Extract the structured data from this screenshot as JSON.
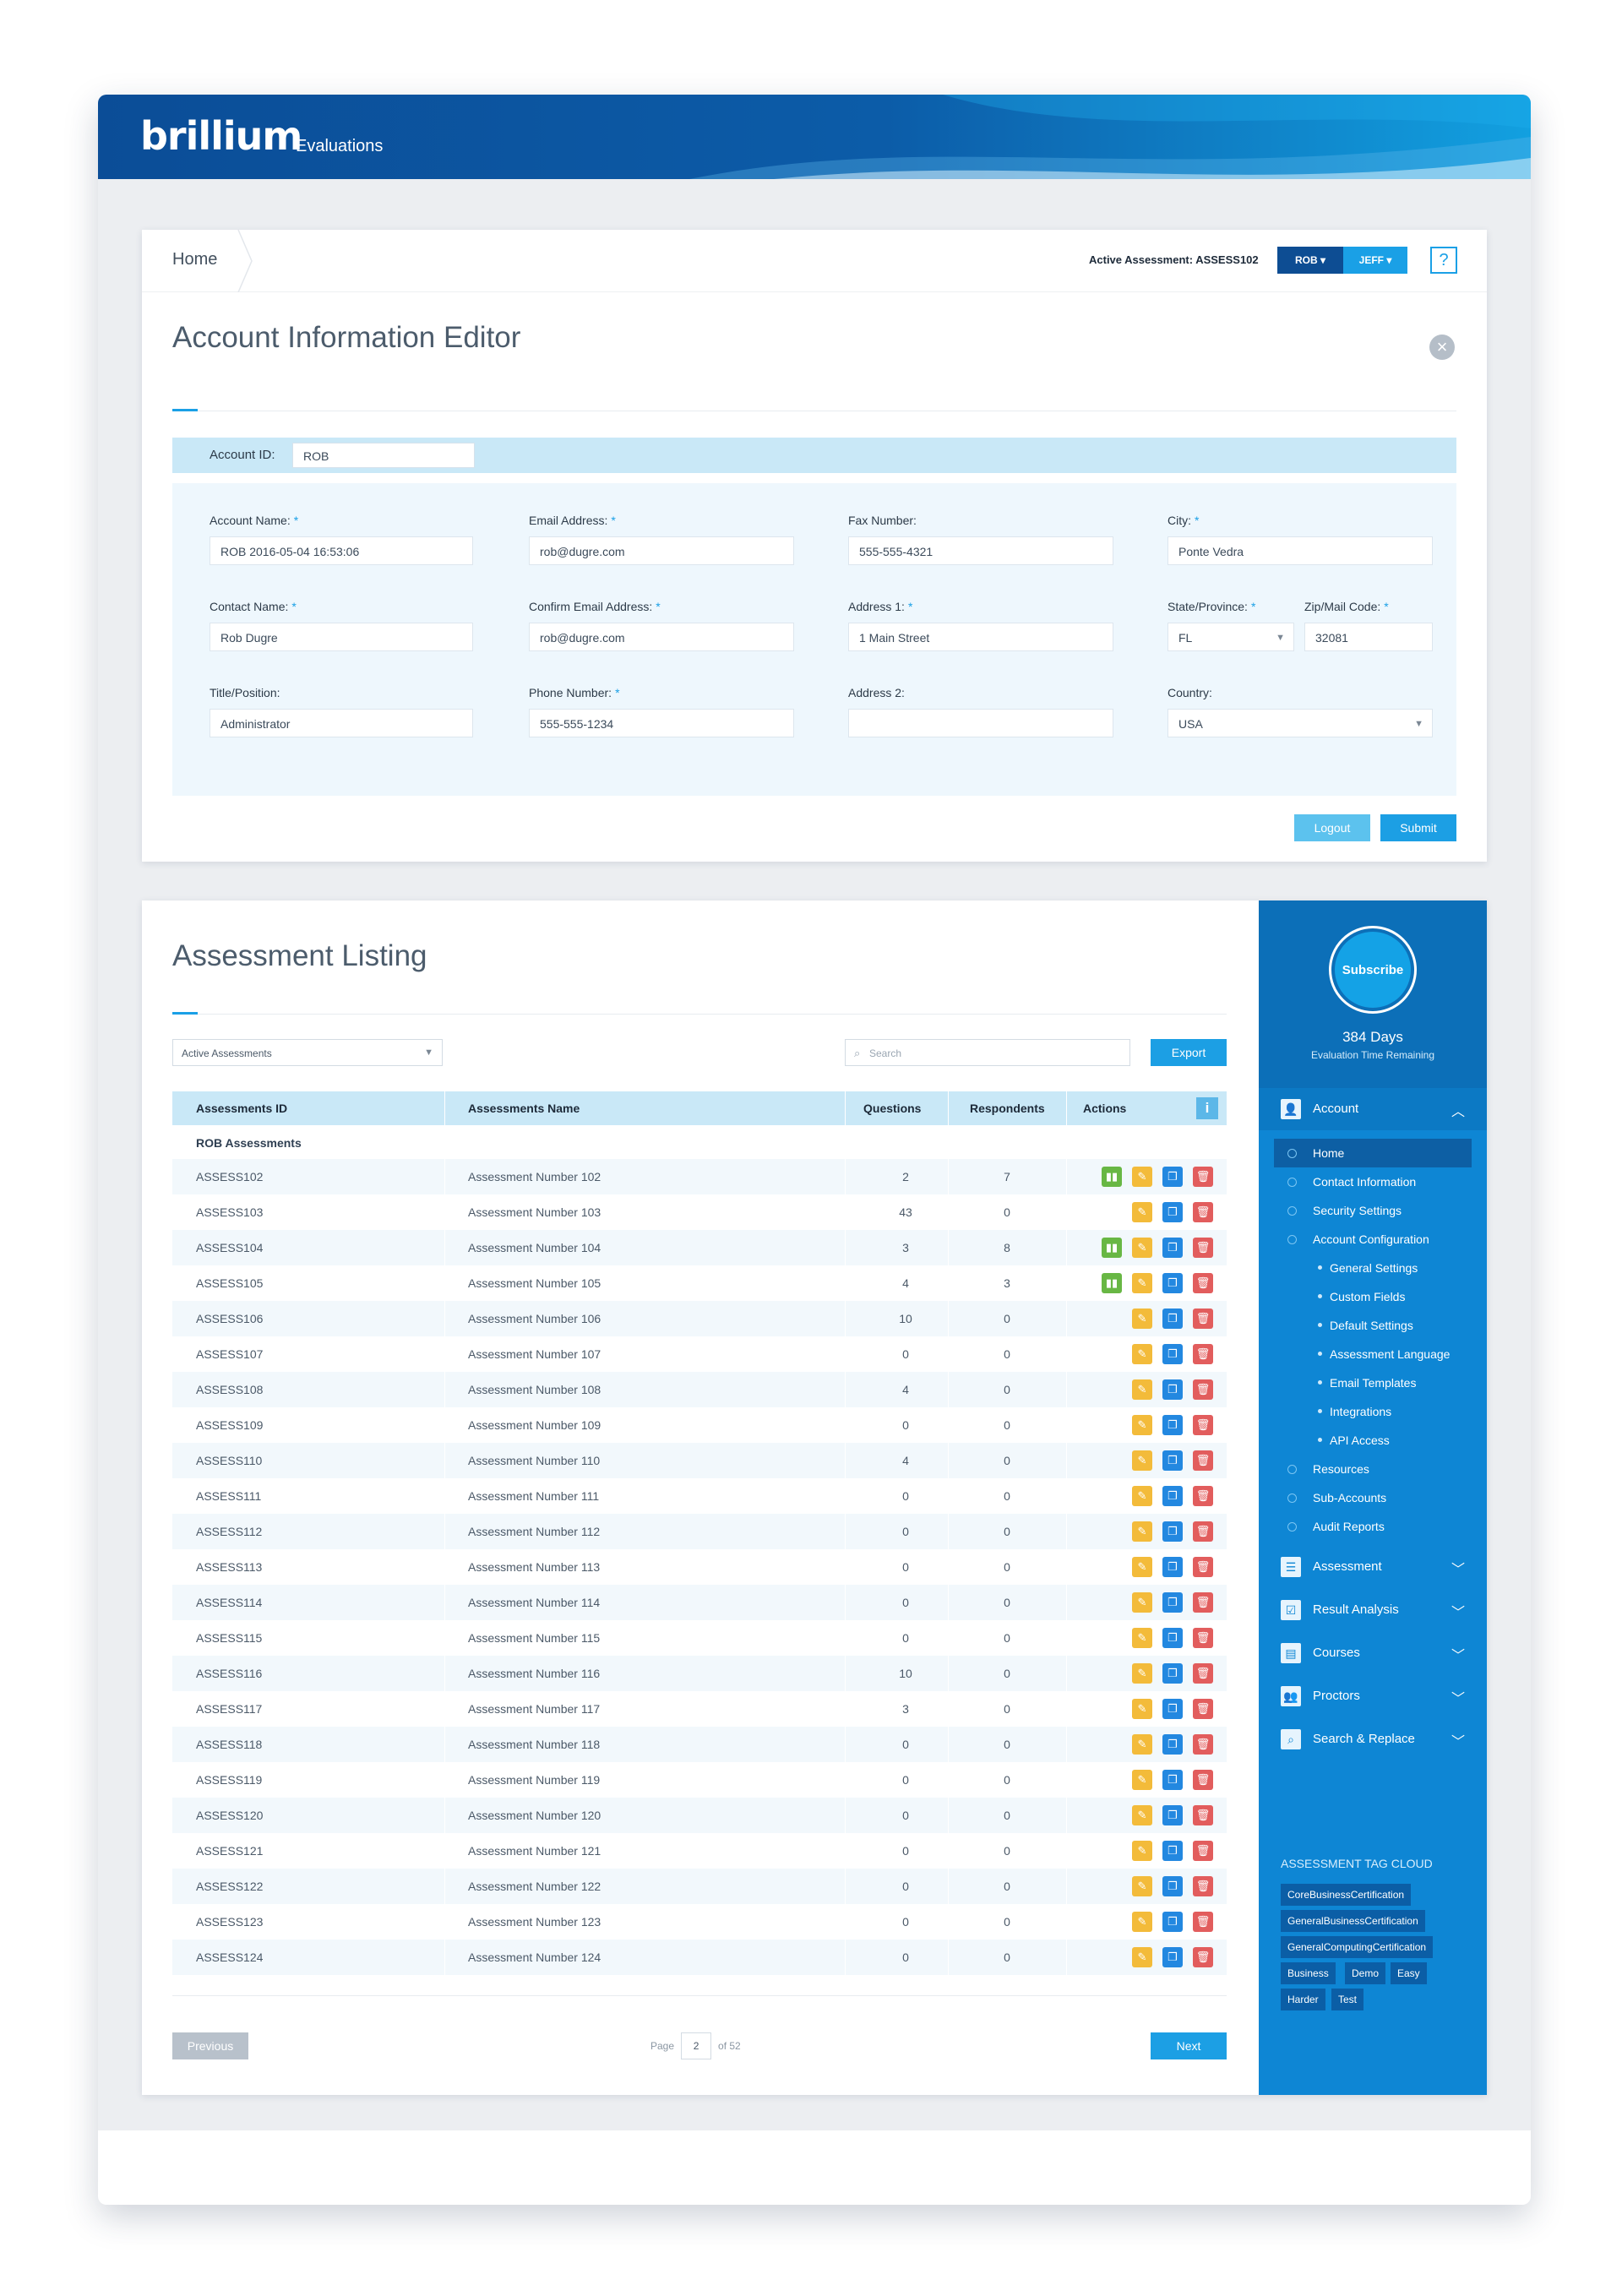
{
  "brand": {
    "logo": "brillium",
    "product": "Evaluations"
  },
  "breadcrumb": {
    "home": "Home"
  },
  "header": {
    "active_assessment_label": "Active Assessment: ASSESS102",
    "user_pill": "ROB",
    "account_pill": "JEFF",
    "help": "?"
  },
  "editor": {
    "title": "Account Information Editor",
    "account_id_label": "Account ID:",
    "account_id_value": "ROB",
    "fields": {
      "account_name": {
        "label": "Account Name:",
        "value": "ROB 2016-05-04 16:53:06",
        "required": "*"
      },
      "email": {
        "label": "Email Address:",
        "value": "rob@dugre.com",
        "required": "*"
      },
      "fax": {
        "label": "Fax Number:",
        "value": "555-555-4321"
      },
      "city": {
        "label": "City:",
        "value": "Ponte Vedra",
        "required": "*"
      },
      "contact": {
        "label": "Contact Name:",
        "value": "Rob Dugre",
        "required": "*"
      },
      "confirm_email": {
        "label": "Confirm Email Address:",
        "value": "rob@dugre.com",
        "required": "*"
      },
      "address1": {
        "label": "Address 1:",
        "value": "1 Main Street",
        "required": "*"
      },
      "state": {
        "label": "State/Province:",
        "value": "FL",
        "required": "*"
      },
      "zip": {
        "label": "Zip/Mail Code:",
        "value": "32081",
        "required": "*"
      },
      "title": {
        "label": "Title/Position:",
        "value": "Administrator"
      },
      "phone": {
        "label": "Phone Number:",
        "value": "555-555-1234",
        "required": "*"
      },
      "address2": {
        "label": "Address 2:",
        "value": ""
      },
      "country": {
        "label": "Country:",
        "value": "USA"
      }
    },
    "logout_label": "Logout",
    "submit_label": "Submit"
  },
  "listing": {
    "title": "Assessment Listing",
    "filter_value": "Active Assessments",
    "search_placeholder": "Search",
    "export_label": "Export",
    "columns": [
      "Assessments ID",
      "Assessments Name",
      "Questions",
      "Respondents",
      "Actions"
    ],
    "group_label": "ROB Assessments",
    "rows": [
      {
        "id": "ASSESS102",
        "name": "Assessment Number 102",
        "questions": "2",
        "respondents": "7",
        "chart": true
      },
      {
        "id": "ASSESS103",
        "name": "Assessment Number 103",
        "questions": "43",
        "respondents": "0",
        "chart": false
      },
      {
        "id": "ASSESS104",
        "name": "Assessment Number 104",
        "questions": "3",
        "respondents": "8",
        "chart": true
      },
      {
        "id": "ASSESS105",
        "name": "Assessment Number 105",
        "questions": "4",
        "respondents": "3",
        "chart": true
      },
      {
        "id": "ASSESS106",
        "name": "Assessment Number 106",
        "questions": "10",
        "respondents": "0",
        "chart": false
      },
      {
        "id": "ASSESS107",
        "name": "Assessment Number 107",
        "questions": "0",
        "respondents": "0",
        "chart": false
      },
      {
        "id": "ASSESS108",
        "name": "Assessment Number 108",
        "questions": "4",
        "respondents": "0",
        "chart": false
      },
      {
        "id": "ASSESS109",
        "name": "Assessment Number 109",
        "questions": "0",
        "respondents": "0",
        "chart": false
      },
      {
        "id": "ASSESS110",
        "name": "Assessment Number 110",
        "questions": "4",
        "respondents": "0",
        "chart": false
      },
      {
        "id": "ASSESS111",
        "name": "Assessment Number 111",
        "questions": "0",
        "respondents": "0",
        "chart": false
      },
      {
        "id": "ASSESS112",
        "name": "Assessment Number 112",
        "questions": "0",
        "respondents": "0",
        "chart": false
      },
      {
        "id": "ASSESS113",
        "name": "Assessment Number 113",
        "questions": "0",
        "respondents": "0",
        "chart": false
      },
      {
        "id": "ASSESS114",
        "name": "Assessment Number 114",
        "questions": "0",
        "respondents": "0",
        "chart": false
      },
      {
        "id": "ASSESS115",
        "name": "Assessment Number 115",
        "questions": "0",
        "respondents": "0",
        "chart": false
      },
      {
        "id": "ASSESS116",
        "name": "Assessment Number 116",
        "questions": "10",
        "respondents": "0",
        "chart": false
      },
      {
        "id": "ASSESS117",
        "name": "Assessment Number 117",
        "questions": "3",
        "respondents": "0",
        "chart": false
      },
      {
        "id": "ASSESS118",
        "name": "Assessment Number 118",
        "questions": "0",
        "respondents": "0",
        "chart": false
      },
      {
        "id": "ASSESS119",
        "name": "Assessment Number 119",
        "questions": "0",
        "respondents": "0",
        "chart": false
      },
      {
        "id": "ASSESS120",
        "name": "Assessment Number 120",
        "questions": "0",
        "respondents": "0",
        "chart": false
      },
      {
        "id": "ASSESS121",
        "name": "Assessment Number 121",
        "questions": "0",
        "respondents": "0",
        "chart": false
      },
      {
        "id": "ASSESS122",
        "name": "Assessment Number 122",
        "questions": "0",
        "respondents": "0",
        "chart": false
      },
      {
        "id": "ASSESS123",
        "name": "Assessment Number 123",
        "questions": "0",
        "respondents": "0",
        "chart": false
      },
      {
        "id": "ASSESS124",
        "name": "Assessment Number 124",
        "questions": "0",
        "respondents": "0",
        "chart": false
      }
    ],
    "pager": {
      "prev_label": "Previous",
      "page_label": "Page",
      "page_value": "2",
      "of_label": "of 52",
      "next_label": "Next"
    }
  },
  "sidebar": {
    "subscribe_label": "Subscribe",
    "days": "384 Days",
    "days_sub": "Evaluation Time Remaining",
    "account_label": "Account",
    "account_items": [
      {
        "label": "Home",
        "level": "top",
        "selected": true
      },
      {
        "label": "Contact Information",
        "level": "top"
      },
      {
        "label": "Security Settings",
        "level": "top"
      },
      {
        "label": "Account Configuration",
        "level": "top"
      },
      {
        "label": "General Settings",
        "level": "sub"
      },
      {
        "label": "Custom Fields",
        "level": "sub"
      },
      {
        "label": "Default Settings",
        "level": "sub"
      },
      {
        "label": "Assessment Language",
        "level": "sub"
      },
      {
        "label": "Email Templates",
        "level": "sub"
      },
      {
        "label": "Integrations",
        "level": "sub"
      },
      {
        "label": "API Access",
        "level": "sub"
      },
      {
        "label": "Resources",
        "level": "top"
      },
      {
        "label": "Sub-Accounts",
        "level": "top"
      },
      {
        "label": "Audit Reports",
        "level": "top"
      }
    ],
    "sections": [
      {
        "label": "Assessment",
        "icon": "list-icon"
      },
      {
        "label": "Result Analysis",
        "icon": "checklist-icon"
      },
      {
        "label": "Courses",
        "icon": "course-icon"
      },
      {
        "label": "Proctors",
        "icon": "people-icon"
      },
      {
        "label": "Search & Replace",
        "icon": "search-icon"
      }
    ],
    "tag_cloud_title": "ASSESSMENT TAG CLOUD",
    "tags": [
      "CoreBusinessCertification",
      "GeneralBusinessCertification",
      "GeneralComputingCertification",
      "Business",
      "Demo",
      "Easy",
      "Harder",
      "Test"
    ]
  },
  "colors": {
    "brand_dark": "#0b4d97",
    "accent": "#1aa0e6",
    "sidebar": "#0e86d4",
    "chart_action": "#68b744",
    "edit_action": "#f3bb3a",
    "copy_action": "#2388e0",
    "delete_action": "#e25d5d"
  }
}
